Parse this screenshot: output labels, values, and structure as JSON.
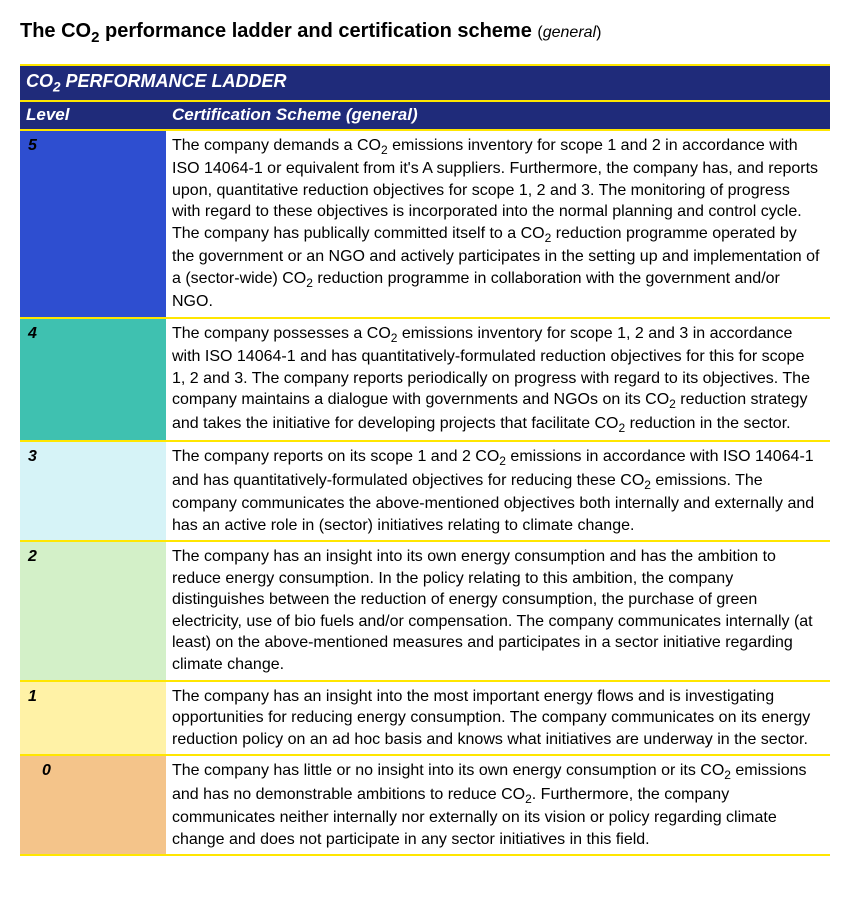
{
  "title_main": "The CO",
  "title_sub_digit": "2",
  "title_rest": " performance ladder and certification scheme ",
  "title_paren_open": "(",
  "title_general": "general",
  "title_paren_close": ")",
  "table": {
    "header_title_pre": "CO",
    "header_title_sub": "2",
    "header_title_post": " PERFORMANCE LADDER",
    "col1": "Level",
    "col2": "Certification Scheme (general)",
    "rows": [
      {
        "level": "5",
        "level_bg": "#2e4ed0",
        "desc_html": "The company demands a CO<sub>2</sub> emissions inventory for scope 1 and 2 in accordance with ISO 14064-1 or equivalent from it's A suppliers. Furthermore, the company has, and reports upon, quantitative reduction objectives for scope 1, 2 and 3. The monitoring of progress with regard to these objectives is incorporated into the normal planning and control cycle. The company has publically committed itself to a CO<sub>2</sub> reduction programme operated by the government or an NGO and actively participates in the setting up and implementation of a (sector-wide) CO<sub>2</sub> reduction programme in collaboration with the government and/or NGO."
      },
      {
        "level": "4",
        "level_bg": "#3fc1b0",
        "desc_html": "The company possesses a CO<sub>2</sub> emissions inventory for scope 1, 2 and 3 in accordance with ISO 14064-1 and has quantitatively-formulated reduction objectives for this for scope 1, 2 and 3. The company reports periodically on progress with regard to its objectives. The company maintains a dialogue with governments and NGOs on its CO<sub>2</sub> reduction strategy and takes the initiative for developing projects that facilitate CO<sub>2</sub> reduction in the sector."
      },
      {
        "level": "3",
        "level_bg": "#d6f3f7",
        "desc_html": "The company reports on its scope 1 and 2 CO<sub>2</sub> emissions in accordance with ISO 14064-1 and has quantitatively-formulated objectives for reducing these CO<sub>2</sub> emissions. The company communicates the above-mentioned objectives both internally and externally and has an active role in (sector) initiatives relating to climate change."
      },
      {
        "level": "2",
        "level_bg": "#d3f0c8",
        "desc_html": "The company has an insight into its own energy consumption and has the ambition to reduce energy consumption. In the policy relating to this ambition, the company distinguishes between the reduction of energy consumption, the purchase of green electricity, use of bio fuels and/or compensation. The company communicates internally (at least) on the above-mentioned measures and participates in a sector initiative regarding climate change."
      },
      {
        "level": "1",
        "level_bg": "#fff2a6",
        "desc_html": "The company has an insight into the most important energy flows and is investigating opportunities for reducing energy consumption. The company communicates on its energy reduction policy on an ad hoc basis and knows what initiatives are underway in the sector."
      },
      {
        "level": "0",
        "level_bg": "#f4c48a",
        "level_indent": true,
        "desc_html": "The company has little or no insight into its own energy consumption or its CO<sub>2</sub> emissions and has no demonstrable ambitions to reduce CO<sub>2</sub>. Furthermore, the company communicates neither internally nor externally on its vision or policy regarding climate change and does not participate in any sector initiatives in this field."
      }
    ]
  }
}
